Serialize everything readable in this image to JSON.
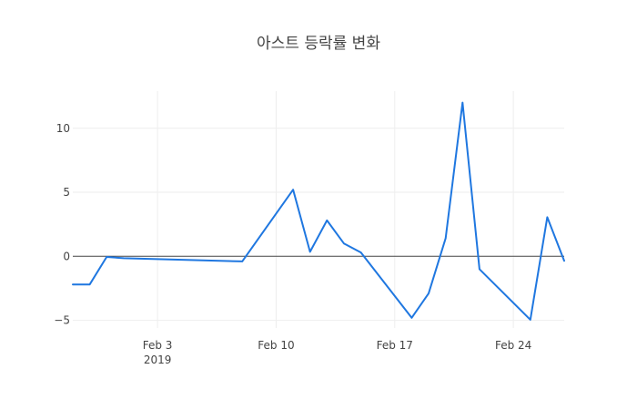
{
  "chart_data": {
    "type": "line",
    "title": "아스트 등락률 변화",
    "xlabel": "",
    "ylabel": "",
    "x": [
      "2019-01-29",
      "2019-01-30",
      "2019-01-31",
      "2019-02-01",
      "2019-02-08",
      "2019-02-11",
      "2019-02-12",
      "2019-02-13",
      "2019-02-14",
      "2019-02-15",
      "2019-02-18",
      "2019-02-19",
      "2019-02-20",
      "2019-02-21",
      "2019-02-22",
      "2019-02-25",
      "2019-02-26",
      "2019-02-27"
    ],
    "series": [
      {
        "values": [
          -2.2,
          -2.2,
          -0.05,
          -0.15,
          -0.4,
          5.2,
          0.35,
          2.8,
          1.0,
          0.3,
          -4.8,
          -2.9,
          1.4,
          12.0,
          -1.0,
          -4.95,
          3.05,
          -0.35
        ],
        "color": "#1f77e0"
      }
    ],
    "xlim": [
      "2019-01-29",
      "2019-02-27"
    ],
    "ylim": [
      -5.6,
      12.9
    ],
    "yticks": [
      -5,
      0,
      5,
      10
    ],
    "ytick_labels": [
      "−5",
      "0",
      "5",
      "10"
    ],
    "xticks": [
      "2019-02-03",
      "2019-02-10",
      "2019-02-17",
      "2019-02-24"
    ],
    "xtick_labels": [
      "Feb 3",
      "Feb 10",
      "Feb 17",
      "Feb 24"
    ],
    "xtick_sublabel": "2019",
    "grid": true,
    "zero_line": true,
    "legend": "none"
  }
}
